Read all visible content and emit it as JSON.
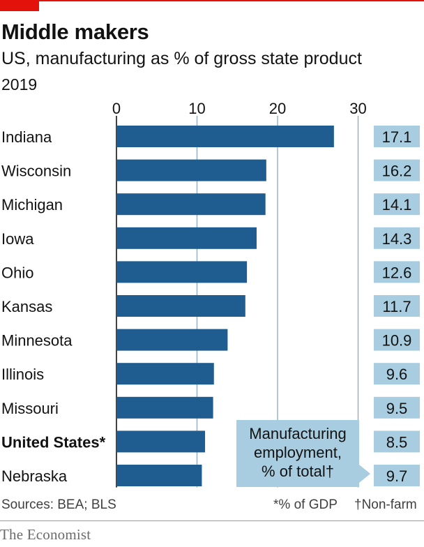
{
  "header": {
    "title": "Middle makers",
    "subtitle": "US, manufacturing as % of gross state product",
    "year": "2019"
  },
  "callout": {
    "line1": "Manufacturing",
    "line2": "employment,",
    "line3": "% of total†"
  },
  "footer": {
    "sources": "Sources: BEA; BLS",
    "note1": "*% of GDP",
    "note2": "†Non-farm",
    "brand": "The Economist"
  },
  "colors": {
    "bar": "#1f5c8f",
    "label_box": "#a8cde0",
    "grid": "#8da8bd"
  },
  "chart_data": {
    "type": "bar",
    "orientation": "horizontal",
    "categories": [
      "Indiana",
      "Wisconsin",
      "Michigan",
      "Iowa",
      "Ohio",
      "Kansas",
      "Minnesota",
      "Illinois",
      "Missouri",
      "United States*",
      "Nebraska"
    ],
    "series": [
      {
        "values": [
          27.0,
          18.6,
          18.5,
          17.4,
          16.2,
          16.0,
          13.8,
          12.1,
          12.0,
          11.0,
          10.6
        ]
      },
      {
        "name": "Manufacturing employment, % of total†",
        "values": [
          17.1,
          16.2,
          14.1,
          14.3,
          12.6,
          11.7,
          10.9,
          9.6,
          9.5,
          8.5,
          9.7
        ]
      }
    ],
    "value_labels": [
      "17.1",
      "16.2",
      "14.1",
      "14.3",
      "12.6",
      "11.7",
      "10.9",
      "9.6",
      "9.5",
      "8.5",
      "9.7"
    ],
    "x_ticks": [
      "0",
      "10",
      "20",
      "30"
    ],
    "xlim": [
      0,
      30
    ],
    "grid": true,
    "highlight": "United States*"
  }
}
